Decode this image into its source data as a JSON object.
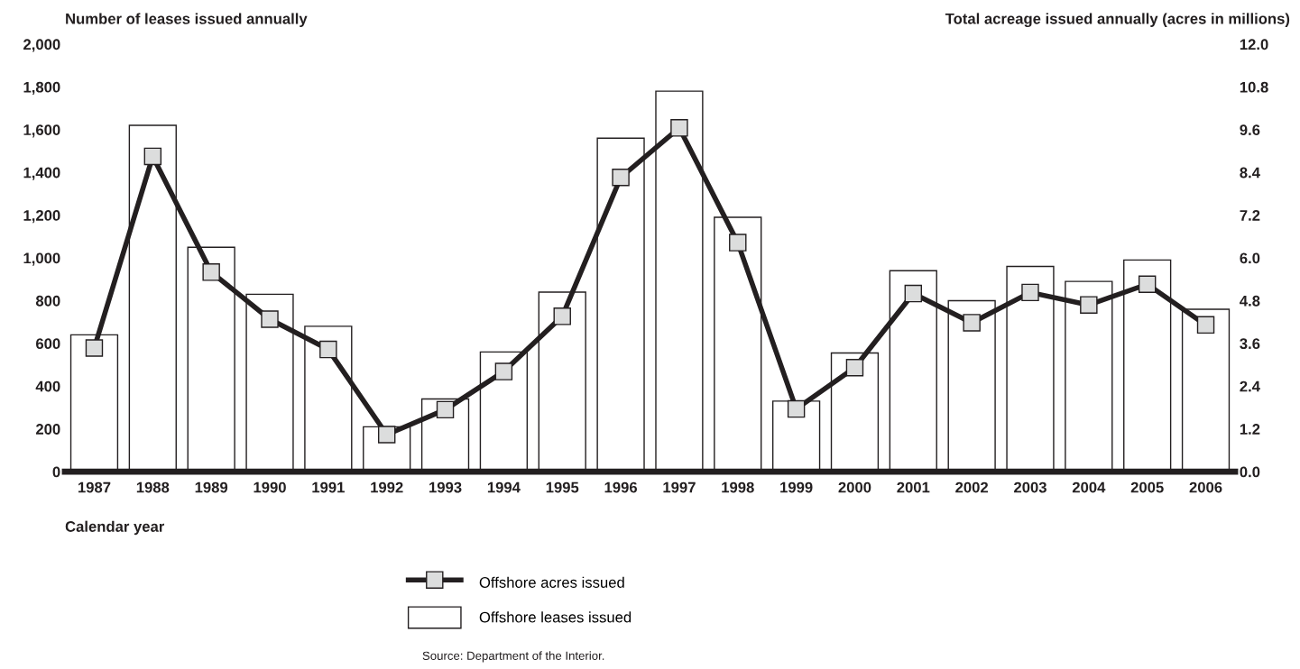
{
  "chart_data": {
    "type": "bar",
    "ylabel": "Number of leases issued annually",
    "y2label": "Total acreage issued annually (acres in millions)",
    "xlabel": "Calendar year",
    "categories": [
      "1987",
      "1988",
      "1989",
      "1990",
      "1991",
      "1992",
      "1993",
      "1994",
      "1995",
      "1996",
      "1997",
      "1998",
      "1999",
      "2000",
      "2001",
      "2002",
      "2003",
      "2004",
      "2005",
      "2006"
    ],
    "series": [
      {
        "name": "Offshore acres issued",
        "type": "line",
        "axis": "y2",
        "color": "#231f20",
        "marker": "square",
        "values": [
          3.47,
          8.85,
          5.6,
          4.28,
          3.43,
          1.04,
          1.74,
          2.81,
          4.36,
          8.26,
          9.65,
          6.43,
          1.76,
          2.92,
          5.0,
          4.18,
          5.03,
          4.68,
          5.26,
          4.12
        ]
      },
      {
        "name": "Offshore leases issued",
        "color": "#ffffff",
        "values": [
          640,
          1620,
          1050,
          830,
          680,
          210,
          340,
          560,
          840,
          1560,
          1780,
          1190,
          330,
          555,
          940,
          800,
          960,
          890,
          990,
          760
        ]
      }
    ],
    "ylim": [
      0,
      2000
    ],
    "yticks": [
      0,
      200,
      400,
      600,
      800,
      {
        "value": 1000,
        "label": "1,000"
      },
      {
        "value": 1200,
        "label": "1,200"
      },
      {
        "value": 1400,
        "label": "1,400"
      },
      {
        "value": 1600,
        "label": "1,600"
      },
      {
        "value": 1800,
        "label": "1,800"
      },
      {
        "value": 2000,
        "label": "2,000"
      }
    ],
    "y2lim": [
      0,
      12
    ],
    "y2ticks": [
      {
        "value": 0,
        "label": "0.0"
      },
      1.2,
      2.4,
      3.6,
      4.8,
      {
        "value": 6,
        "label": "6.0"
      },
      7.2,
      8.4,
      9.6,
      10.8,
      {
        "value": 12,
        "label": "12.0"
      }
    ],
    "grid": false,
    "legend": "bottom",
    "annotations": [
      "Source: Department of the Interior."
    ]
  }
}
